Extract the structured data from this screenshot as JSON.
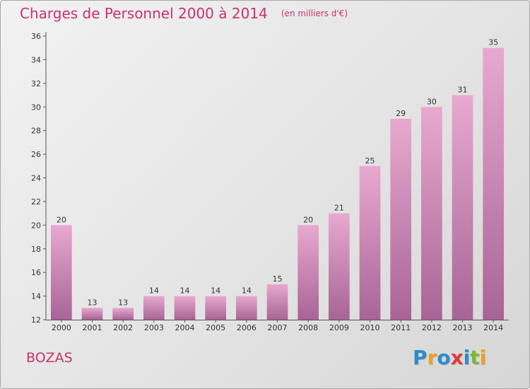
{
  "header": {
    "title": "Charges de Personnel 2000 à 2014",
    "subtitle": "(en milliers d'€)"
  },
  "footer": {
    "commune": "BOZAS",
    "brand": {
      "text": "Proxiti",
      "letters": [
        {
          "ch": "P",
          "color": "#2d8bd0"
        },
        {
          "ch": "r",
          "color": "#f0a020"
        },
        {
          "ch": "o",
          "color": "#2d8bd0"
        },
        {
          "ch": "x",
          "color": "#e23b3b"
        },
        {
          "ch": "i",
          "color": "#2d8bd0"
        },
        {
          "ch": "t",
          "color": "#7cba2f"
        },
        {
          "ch": "i",
          "color": "#f0a020"
        }
      ]
    }
  },
  "colors": {
    "accent": "#c8326e",
    "bar_top": "#e8a9d0",
    "bar_bottom": "#a86496",
    "axis": "#555555"
  },
  "chart_data": {
    "type": "bar",
    "title": "Charges de Personnel 2000 à 2014",
    "subtitle": "(en milliers d'€)",
    "xlabel": "",
    "ylabel": "",
    "categories": [
      "2000",
      "2001",
      "2002",
      "2003",
      "2004",
      "2005",
      "2006",
      "2007",
      "2008",
      "2009",
      "2010",
      "2011",
      "2012",
      "2013",
      "2014"
    ],
    "values": [
      20,
      13,
      13,
      14,
      14,
      14,
      14,
      15,
      20,
      21,
      25,
      29,
      30,
      31,
      35
    ],
    "ylim": [
      12,
      36
    ],
    "yticks": [
      12,
      14,
      16,
      18,
      20,
      22,
      24,
      26,
      28,
      30,
      32,
      34,
      36
    ],
    "grid": false,
    "data_labels": true
  }
}
